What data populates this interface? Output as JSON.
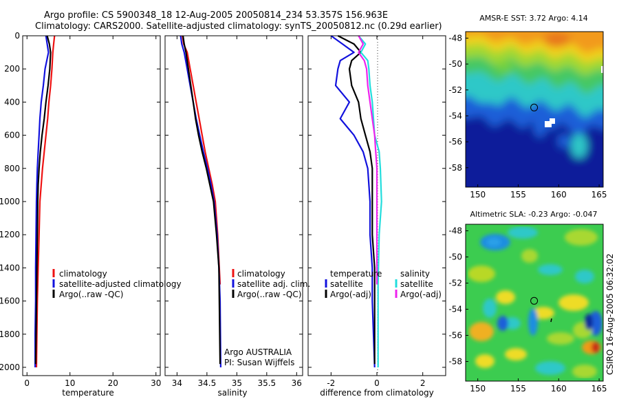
{
  "header": {
    "title_line1": "Argo profile: CS 5900348_18 12-Aug-2005 20050814_234 53.357S 156.963E",
    "title_line2": "Climatology: CARS2000. Satellite-adjusted climatology: synTS_20050812.nc (0.29d earlier)"
  },
  "credit": "CSIRO 16-Aug-2005 06:32:02",
  "colors": {
    "climatology": "#ee1111",
    "satellite": "#1111dd",
    "argo": "#000000",
    "diff_sal_satellite": "#22dddd",
    "diff_sal_argo": "#ee22ee"
  },
  "chart_data": [
    {
      "type": "line",
      "xlabel": "temperature",
      "xlim": [
        -1,
        31
      ],
      "xticks": [
        0,
        10,
        20,
        30
      ],
      "ylim": [
        2050,
        0
      ],
      "yticks": [
        0,
        200,
        400,
        600,
        800,
        1000,
        1200,
        1400,
        1600,
        1800,
        2000
      ],
      "legend": [
        "climatology",
        "satellite-adjusted climatology",
        "Argo(..raw -QC)"
      ],
      "legend_position": "bottom-right",
      "series": [
        {
          "name": "climatology",
          "color": "#ee1111",
          "x": [
            6.4,
            6.2,
            6.0,
            5.8,
            5.5,
            5.1,
            4.8,
            4.4,
            4.0,
            3.6,
            3.3,
            3.0,
            2.8,
            2.6,
            2.4,
            2.3,
            2.2
          ],
          "y": [
            0,
            50,
            100,
            200,
            300,
            400,
            500,
            600,
            700,
            800,
            900,
            1000,
            1200,
            1400,
            1600,
            1800,
            2000
          ]
        },
        {
          "name": "satellite-adjusted climatology",
          "color": "#1111dd",
          "x": [
            4.4,
            4.7,
            5.0,
            4.2,
            3.8,
            3.3,
            3.0,
            2.8,
            2.6,
            2.4,
            2.3,
            2.2,
            2.1,
            2.0,
            2.0,
            1.9,
            1.9
          ],
          "y": [
            0,
            50,
            100,
            200,
            300,
            400,
            500,
            600,
            700,
            800,
            900,
            1000,
            1200,
            1400,
            1600,
            1800,
            2000
          ]
        },
        {
          "name": "Argo(..raw -QC)",
          "color": "#000000",
          "x": [
            4.7,
            5.2,
            5.5,
            5.3,
            4.9,
            4.4,
            4.0,
            3.5,
            3.1,
            2.8,
            2.6,
            2.5,
            2.4,
            2.3,
            2.2,
            2.1,
            2.0
          ],
          "y": [
            0,
            50,
            100,
            200,
            300,
            400,
            500,
            600,
            700,
            800,
            900,
            1000,
            1200,
            1400,
            1600,
            1800,
            1980
          ]
        }
      ]
    },
    {
      "type": "line",
      "xlabel": "salinity",
      "xlim": [
        33.8,
        36.1
      ],
      "xticks": [
        34,
        34.5,
        35,
        35.5,
        36
      ],
      "ylim": [
        2050,
        0
      ],
      "legend": [
        "climatology",
        "satellite adj. clim.",
        "Argo(..raw -QC)"
      ],
      "legend_position": "bottom-right",
      "annotations": [
        "Argo AUSTRALIA",
        "PI: Susan Wijffels"
      ],
      "series": [
        {
          "name": "climatology",
          "color": "#ee1111",
          "x": [
            34.09,
            34.11,
            34.17,
            34.22,
            34.27,
            34.32,
            34.37,
            34.42,
            34.47,
            34.53,
            34.59,
            34.64,
            34.68,
            34.72
          ],
          "y": [
            0,
            50,
            100,
            200,
            300,
            400,
            500,
            600,
            700,
            800,
            900,
            1000,
            1200,
            1500
          ]
        },
        {
          "name": "satellite adj. clim.",
          "color": "#1111dd",
          "x": [
            34.06,
            34.08,
            34.12,
            34.17,
            34.22,
            34.27,
            34.32,
            34.38,
            34.44,
            34.51,
            34.57,
            34.62,
            34.67,
            34.7,
            34.72,
            34.73
          ],
          "y": [
            0,
            50,
            100,
            200,
            300,
            400,
            500,
            600,
            700,
            800,
            900,
            1000,
            1200,
            1400,
            1600,
            2000
          ]
        },
        {
          "name": "Argo(..raw -QC)",
          "color": "#000000",
          "x": [
            34.1,
            34.12,
            34.15,
            34.19,
            34.23,
            34.27,
            34.31,
            34.36,
            34.42,
            34.49,
            34.55,
            34.61,
            34.66,
            34.7,
            34.72
          ],
          "y": [
            0,
            50,
            100,
            200,
            300,
            400,
            500,
            600,
            700,
            800,
            900,
            1000,
            1200,
            1400,
            1980
          ]
        }
      ]
    },
    {
      "type": "line",
      "xlabel": "difference from climatology",
      "xlim": [
        -3,
        3
      ],
      "xticks": [
        -2,
        0,
        2
      ],
      "ylim": [
        2050,
        0
      ],
      "legend": [
        "temperature",
        "satellite",
        "Argo(-adj)",
        "salinity",
        "satellite",
        "Argo(-adj)"
      ],
      "legend_position": "bottom",
      "series": [
        {
          "name": "temperature satellite",
          "color": "#1111dd",
          "x": [
            -2.0,
            -1.5,
            -1.0,
            -1.6,
            -1.7,
            -1.8,
            -1.2,
            -1.6,
            -1.0,
            -0.6,
            -0.4,
            -0.3,
            -0.3,
            -0.2,
            -0.2,
            -0.1
          ],
          "y": [
            0,
            50,
            100,
            150,
            200,
            300,
            400,
            500,
            600,
            700,
            800,
            1000,
            1200,
            1400,
            1600,
            2000
          ]
        },
        {
          "name": "temperature Argo(-adj)",
          "color": "#000000",
          "x": [
            -1.7,
            -1.0,
            -0.7,
            -1.1,
            -1.2,
            -1.1,
            -0.8,
            -0.7,
            -0.5,
            -0.3,
            -0.2,
            -0.2,
            -0.2,
            -0.1,
            -0.1,
            -0.1
          ],
          "y": [
            0,
            50,
            100,
            150,
            200,
            300,
            400,
            500,
            600,
            700,
            800,
            1000,
            1200,
            1400,
            1600,
            1980
          ]
        },
        {
          "name": "salinity satellite",
          "color": "#22dddd",
          "x": [
            -0.8,
            -0.5,
            -0.7,
            -0.4,
            -0.35,
            -0.3,
            -0.2,
            -0.15,
            -0.1,
            0.1,
            0.15,
            0.2,
            0.1,
            0.05,
            0.05
          ],
          "y": [
            0,
            50,
            100,
            150,
            200,
            300,
            400,
            500,
            600,
            700,
            800,
            1000,
            1200,
            1500,
            2000
          ]
        },
        {
          "name": "salinity Argo(-adj)",
          "color": "#ee22ee",
          "x": [
            -0.8,
            -0.6,
            -0.8,
            -0.55,
            -0.45,
            -0.4,
            -0.3,
            -0.2,
            -0.1,
            -0.05,
            0.0,
            0.0,
            0.0,
            0.0
          ],
          "y": [
            0,
            50,
            100,
            150,
            200,
            300,
            400,
            500,
            600,
            700,
            800,
            1000,
            1200,
            1500
          ]
        }
      ],
      "reference_line_x": 0
    },
    {
      "type": "heatmap",
      "title": "AMSR-E SST: 3.72 Argo: 4.14",
      "xlim": [
        148.5,
        165.5
      ],
      "ylim": [
        -59.5,
        -47.5
      ],
      "xticks": [
        150,
        155,
        160,
        165
      ],
      "yticks": [
        -48,
        -50,
        -52,
        -54,
        -56,
        -58
      ],
      "marker": {
        "lon": 156.963,
        "lat": -53.357
      }
    },
    {
      "type": "heatmap",
      "title": "Altimetric SLA: -0.23 Argo: -0.047",
      "xlim": [
        148.5,
        165.5
      ],
      "ylim": [
        -59.5,
        -47.5
      ],
      "xticks": [
        150,
        155,
        160,
        165
      ],
      "yticks": [
        -48,
        -50,
        -52,
        -54,
        -56,
        -58
      ],
      "marker": {
        "lon": 156.963,
        "lat": -53.357
      }
    }
  ]
}
